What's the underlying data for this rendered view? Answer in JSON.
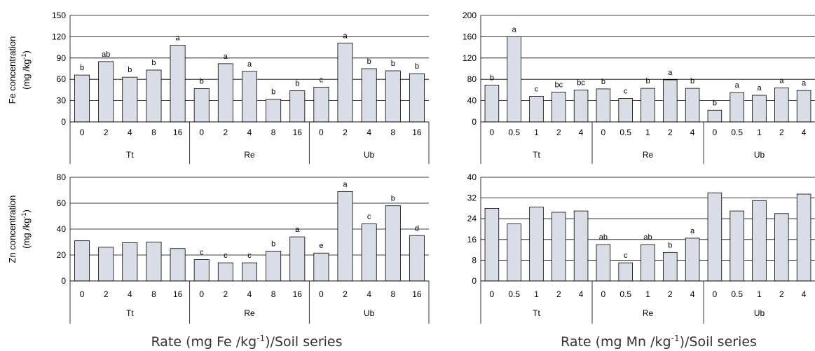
{
  "ylabels": {
    "fe": [
      "Fe concentration",
      "(mg /kg",
      "-1",
      ")"
    ],
    "zn": [
      "Zn concentration",
      "(mg /kg",
      "-1",
      ")"
    ]
  },
  "xtitles": {
    "left": [
      "Rate (mg Fe /kg",
      "-1",
      ")/Soil series"
    ],
    "right": [
      "Rate (mg Mn /kg",
      "-1",
      ")/Soil series"
    ]
  },
  "chart_data": [
    {
      "type": "bar",
      "id": "fe-by-fe-rate",
      "groups": [
        "Tt",
        "Re",
        "Ub"
      ],
      "categories": [
        "0",
        "2",
        "4",
        "8",
        "16"
      ],
      "ylim": [
        0,
        150
      ],
      "yticks": [
        0,
        30,
        60,
        90,
        120,
        150
      ],
      "values": [
        [
          66,
          85,
          63,
          73,
          108
        ],
        [
          47,
          82,
          71,
          32,
          44
        ],
        [
          49,
          111,
          75,
          72,
          68
        ]
      ],
      "labels": [
        [
          "b",
          "ab",
          "b",
          "b",
          "a"
        ],
        [
          "b",
          "a",
          "a",
          "b",
          "b"
        ],
        [
          "c",
          "a",
          "b",
          "b",
          "b"
        ]
      ]
    },
    {
      "type": "bar",
      "id": "fe-by-mn-rate",
      "groups": [
        "Tt",
        "Re",
        "Ub"
      ],
      "categories": [
        "0",
        "0.5",
        "1",
        "2",
        "4"
      ],
      "ylim": [
        0,
        200
      ],
      "yticks": [
        0,
        40,
        80,
        120,
        160,
        200
      ],
      "values": [
        [
          69,
          160,
          48,
          56,
          60
        ],
        [
          62,
          44,
          63,
          79,
          63
        ],
        [
          22,
          55,
          50,
          64,
          59
        ]
      ],
      "labels": [
        [
          "b",
          "a",
          "c",
          "bc",
          "bc"
        ],
        [
          "b",
          "c",
          "b",
          "a",
          "b"
        ],
        [
          "b",
          "a",
          "a",
          "a",
          "a"
        ]
      ]
    },
    {
      "type": "bar",
      "id": "zn-by-fe-rate",
      "groups": [
        "Tt",
        "Re",
        "Ub"
      ],
      "categories": [
        "0",
        "2",
        "4",
        "8",
        "16"
      ],
      "ylim": [
        0,
        80
      ],
      "yticks": [
        0,
        20,
        40,
        60,
        80
      ],
      "values": [
        [
          31,
          26,
          29.5,
          30,
          25
        ],
        [
          16.5,
          14,
          14,
          23,
          34
        ],
        [
          21.5,
          69,
          44,
          58,
          35
        ]
      ],
      "labels": [
        [
          "",
          "",
          "",
          "",
          ""
        ],
        [
          "c",
          "c",
          "c",
          "b",
          "a"
        ],
        [
          "e",
          "a",
          "c",
          "b",
          "d"
        ]
      ]
    },
    {
      "type": "bar",
      "id": "zn-by-mn-rate",
      "groups": [
        "Tt",
        "Re",
        "Ub"
      ],
      "categories": [
        "0",
        "0.5",
        "1",
        "2",
        "4"
      ],
      "ylim": [
        0,
        40
      ],
      "yticks": [
        0,
        8,
        16,
        24,
        32,
        40
      ],
      "values": [
        [
          28,
          22,
          28.5,
          26.5,
          27
        ],
        [
          14,
          7,
          14,
          11,
          16.5
        ],
        [
          34,
          27,
          31,
          26,
          33.5
        ]
      ],
      "labels": [
        [
          "",
          "",
          "",
          "",
          ""
        ],
        [
          "ab",
          "c",
          "ab",
          "b",
          "a"
        ],
        [
          "",
          "",
          "",
          "",
          ""
        ]
      ]
    }
  ]
}
